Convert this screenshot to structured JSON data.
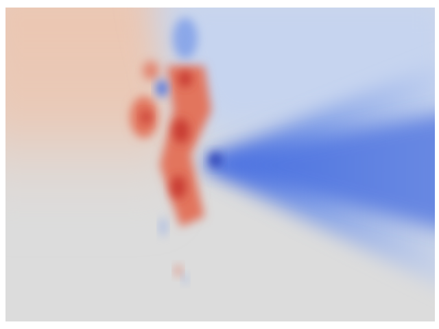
{
  "figure": {
    "kind": "scalar-field-heatmap",
    "colormap": "coolwarm",
    "colors": {
      "background": "#ffffff",
      "neutral": "#dcdcdc",
      "warm_light": "#ecc6b1",
      "warm_mid": "#e2745d",
      "warm_strong": "#c83a33",
      "cool_light": "#c6d4ef",
      "cool_mid": "#7c9ce8",
      "cool_strong": "#4a6fe0",
      "cool_deep": "#2b3fb5"
    },
    "axes_visible": false,
    "legend_visible": false,
    "colorbar_visible": false
  }
}
